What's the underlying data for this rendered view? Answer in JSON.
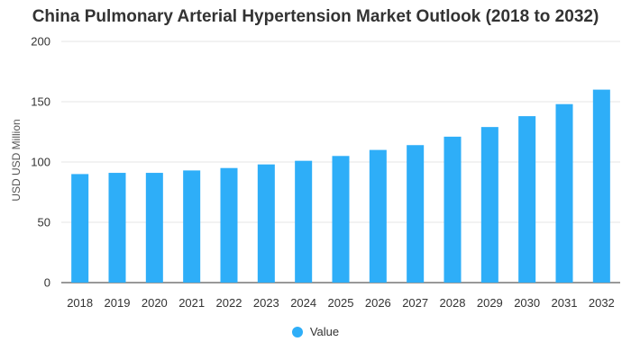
{
  "chart_data": {
    "type": "bar",
    "title": "China Pulmonary Arterial Hypertension Market Outlook (2018 to 2032)",
    "xlabel": "",
    "ylabel": "USD USD Million",
    "ylim": [
      0,
      200
    ],
    "yticks": [
      0,
      50,
      100,
      150,
      200
    ],
    "grid": true,
    "legend_position": "bottom",
    "categories": [
      "2018",
      "2019",
      "2020",
      "2021",
      "2022",
      "2023",
      "2024",
      "2025",
      "2026",
      "2027",
      "2028",
      "2029",
      "2030",
      "2031",
      "2032"
    ],
    "series": [
      {
        "name": "Value",
        "color": "#2EAEF8",
        "values": [
          90,
          91,
          91,
          93,
          95,
          98,
          101,
          105,
          110,
          114,
          121,
          129,
          138,
          148,
          160
        ]
      }
    ]
  }
}
